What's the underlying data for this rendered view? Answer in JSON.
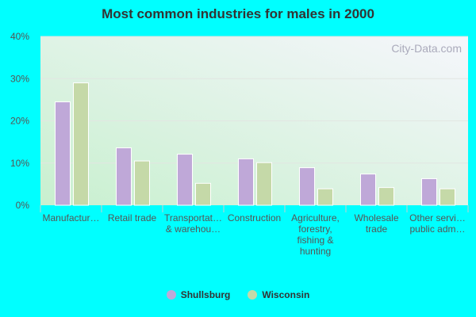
{
  "chart_data": {
    "type": "bar",
    "title": "Most common industries for males in 2000",
    "categories": [
      [
        "Manufactur…"
      ],
      [
        "Retail trade"
      ],
      [
        "Transportat…",
        "& warehou…"
      ],
      [
        "Construction"
      ],
      [
        "Agriculture,",
        "forestry,",
        "fishing &",
        "hunting"
      ],
      [
        "Wholesale",
        "trade"
      ],
      [
        "Other servi…",
        "public adm…"
      ]
    ],
    "series": [
      {
        "name": "Shullsburg",
        "color": "#bfa8d8",
        "values": [
          24.5,
          13.6,
          12.1,
          11.0,
          8.9,
          7.4,
          6.3
        ]
      },
      {
        "name": "Wisconsin",
        "color": "#c5d9a8",
        "values": [
          29.0,
          10.5,
          5.2,
          10.1,
          3.9,
          4.2,
          3.9
        ]
      }
    ],
    "yticks": [
      "0%",
      "10%",
      "20%",
      "30%",
      "40%"
    ],
    "ylim": [
      0,
      40
    ],
    "grid": true,
    "legend": "bottom",
    "watermark": "City-Data.com"
  }
}
